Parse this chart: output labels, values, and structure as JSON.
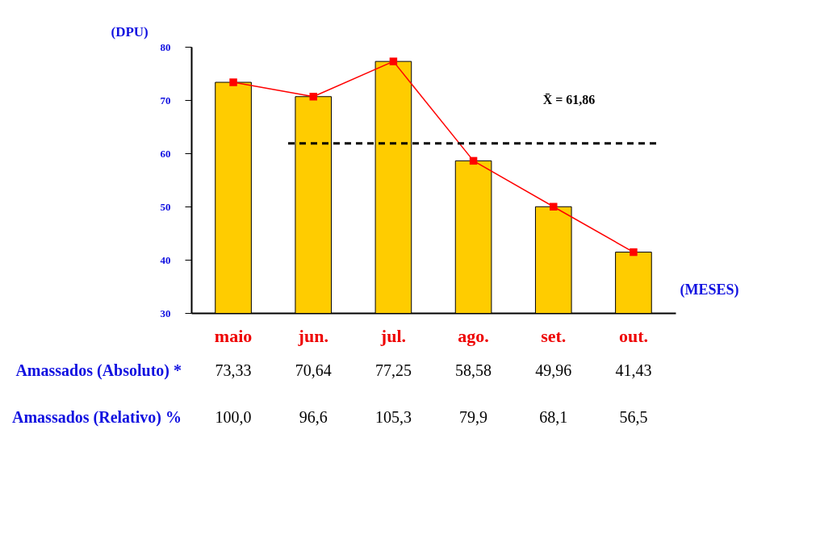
{
  "chart_data": {
    "type": "bar",
    "xlabel": "(MESES)",
    "ylabel": "(DPU)",
    "categories": [
      "maio",
      "jun.",
      "jul.",
      "ago.",
      "set.",
      "out."
    ],
    "series": [
      {
        "name": "Amassados (Absoluto) *",
        "color": "#ffcc00",
        "values": [
          73.33,
          70.64,
          77.25,
          58.58,
          49.96,
          41.43
        ],
        "value_labels": [
          "73,33",
          "70,64",
          "77,25",
          "58,58",
          "49,96",
          "41,43"
        ]
      },
      {
        "type": "line",
        "color": "#ff0000",
        "values": [
          73.33,
          70.64,
          77.25,
          58.58,
          49.96,
          41.43
        ]
      }
    ],
    "ylim": [
      30,
      80
    ],
    "yticks": [
      30,
      40,
      50,
      60,
      70,
      80
    ],
    "marker": "square",
    "line_style": "solid",
    "ref_lines": [
      {
        "axis": "y",
        "value": 61.86,
        "label": "X̄ = 61,86",
        "color": "#000000",
        "line_style": "dashed"
      }
    ],
    "annotations": [
      "Amassados (Relativo) %",
      "100,0",
      "96,6",
      "105,3",
      "79,9",
      "68,1",
      "56,5"
    ]
  }
}
